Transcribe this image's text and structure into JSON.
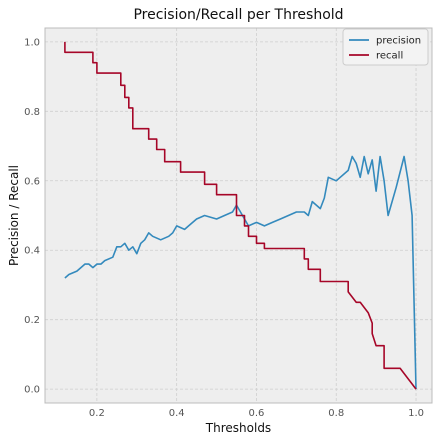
{
  "chart_data": {
    "type": "line",
    "title": "Precision/Recall per Threshold",
    "xlabel": "Thresholds",
    "ylabel": "Precision / Recall",
    "xlim": [
      0.07,
      1.04
    ],
    "ylim": [
      -0.04,
      1.04
    ],
    "xticks": [
      0.2,
      0.4,
      0.6,
      0.8,
      1.0
    ],
    "xtick_labels": [
      "0.2",
      "0.4",
      "0.6",
      "0.8",
      "1.0"
    ],
    "yticks": [
      0.0,
      0.2,
      0.4,
      0.6,
      0.8,
      1.0
    ],
    "ytick_labels": [
      "0.0",
      "0.2",
      "0.4",
      "0.6",
      "0.8",
      "1.0"
    ],
    "grid": true,
    "legend_position": "top-right",
    "series": [
      {
        "name": "precision",
        "color": "#348abd",
        "x": [
          0.12,
          0.13,
          0.15,
          0.16,
          0.17,
          0.18,
          0.19,
          0.2,
          0.21,
          0.22,
          0.24,
          0.25,
          0.26,
          0.27,
          0.28,
          0.29,
          0.3,
          0.31,
          0.32,
          0.33,
          0.34,
          0.36,
          0.38,
          0.39,
          0.4,
          0.42,
          0.43,
          0.45,
          0.47,
          0.5,
          0.52,
          0.54,
          0.55,
          0.57,
          0.58,
          0.6,
          0.62,
          0.64,
          0.66,
          0.68,
          0.7,
          0.72,
          0.73,
          0.74,
          0.75,
          0.76,
          0.77,
          0.78,
          0.8,
          0.83,
          0.84,
          0.85,
          0.86,
          0.87,
          0.88,
          0.89,
          0.9,
          0.91,
          0.92,
          0.93,
          0.95,
          0.97,
          0.98,
          0.99,
          1.0
        ],
        "values": [
          0.32,
          0.33,
          0.34,
          0.35,
          0.36,
          0.36,
          0.35,
          0.36,
          0.36,
          0.37,
          0.38,
          0.41,
          0.41,
          0.42,
          0.4,
          0.41,
          0.39,
          0.42,
          0.43,
          0.45,
          0.44,
          0.43,
          0.44,
          0.45,
          0.47,
          0.46,
          0.47,
          0.49,
          0.5,
          0.49,
          0.5,
          0.51,
          0.53,
          0.49,
          0.47,
          0.48,
          0.47,
          0.48,
          0.49,
          0.5,
          0.51,
          0.51,
          0.5,
          0.54,
          0.53,
          0.52,
          0.55,
          0.61,
          0.6,
          0.63,
          0.67,
          0.65,
          0.61,
          0.67,
          0.62,
          0.66,
          0.57,
          0.67,
          0.6,
          0.5,
          0.58,
          0.67,
          0.6,
          0.5,
          0.0
        ]
      },
      {
        "name": "recall",
        "color": "#a60628",
        "x": [
          0.12,
          0.12,
          0.19,
          0.19,
          0.2,
          0.2,
          0.26,
          0.26,
          0.27,
          0.27,
          0.28,
          0.28,
          0.29,
          0.29,
          0.3,
          0.3,
          0.33,
          0.33,
          0.35,
          0.35,
          0.37,
          0.37,
          0.39,
          0.39,
          0.41,
          0.41,
          0.44,
          0.44,
          0.47,
          0.47,
          0.5,
          0.5,
          0.52,
          0.52,
          0.55,
          0.55,
          0.57,
          0.57,
          0.58,
          0.58,
          0.6,
          0.6,
          0.62,
          0.62,
          0.72,
          0.72,
          0.73,
          0.73,
          0.75,
          0.75,
          0.76,
          0.76,
          0.78,
          0.78,
          0.83,
          0.83,
          0.85,
          0.86,
          0.88,
          0.89,
          0.89,
          0.9,
          0.9,
          0.92,
          0.92,
          0.96,
          0.96,
          0.98,
          1.0
        ]
      }
    ]
  }
}
